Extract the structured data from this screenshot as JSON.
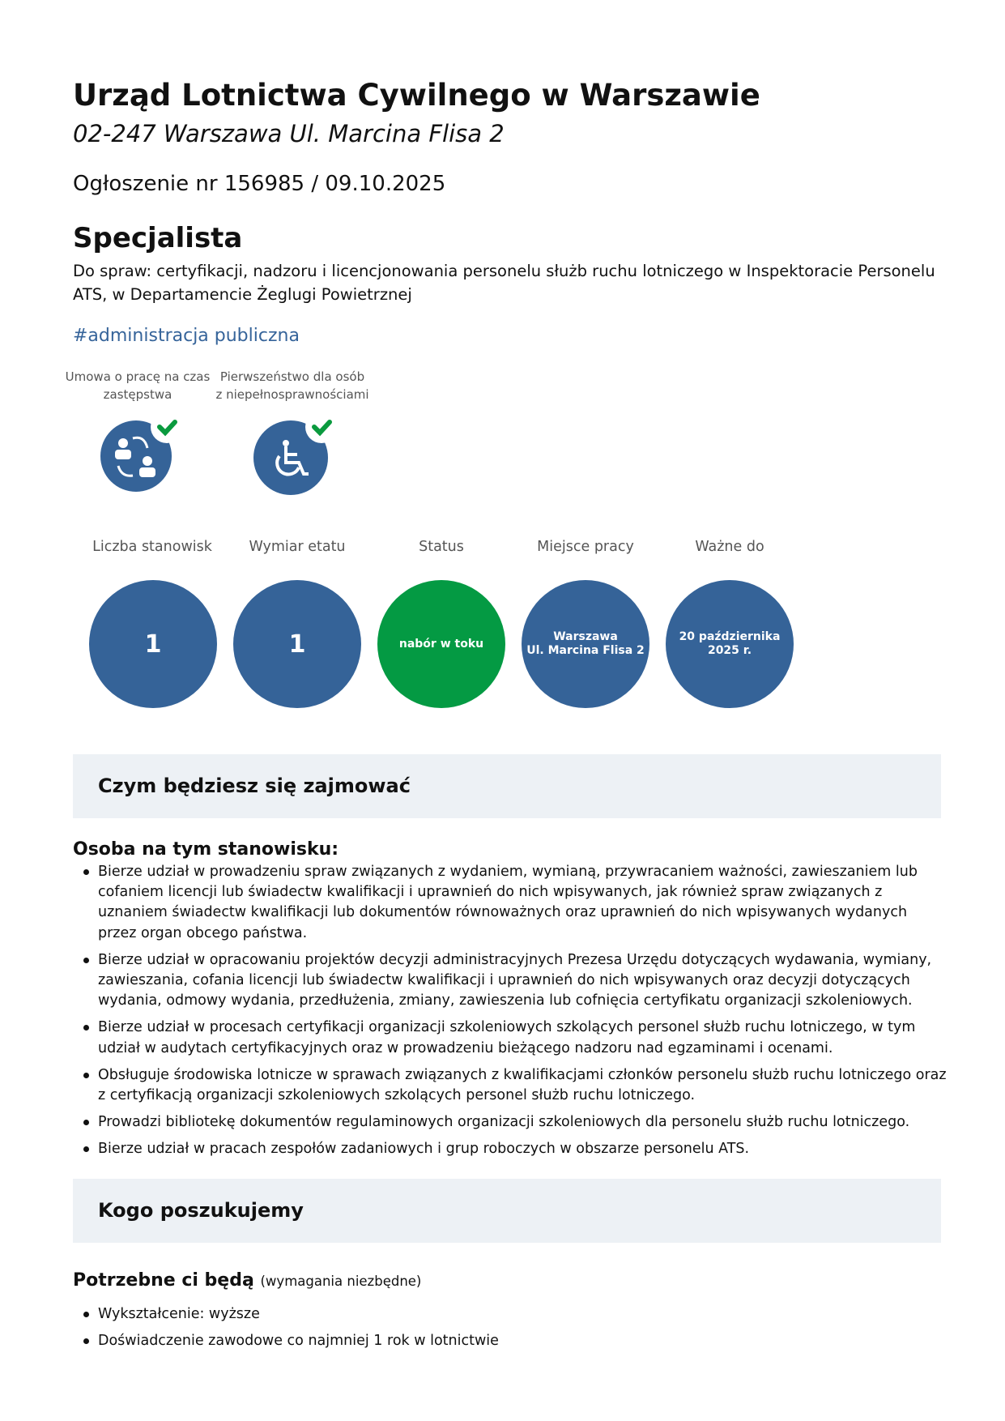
{
  "header": {
    "employer": "Urząd Lotnictwa Cywilnego w Warszawie",
    "address": "02-247 Warszawa Ul. Marcina Flisa 2",
    "notice": "Ogłoszenie nr 156985 / 09.10.2025"
  },
  "job": {
    "position": "Specjalista",
    "description": "Do spraw: certyfikacji, nadzoru i licencjonowania personelu służb ruchu lotniczego w Inspektoracie Personelu ATS, w Departamencie Żeglugi Powietrznej",
    "hashtag": "#administracja publiczna"
  },
  "features": [
    {
      "label": "Umowa o pracę na czas zastępstwa",
      "icon": "people-swap-icon",
      "checked": true
    },
    {
      "label": "Pierwszeństwo dla osób z niepełnosprawnościami",
      "icon": "wheelchair-icon",
      "checked": true
    }
  ],
  "colors": {
    "primary": "#356398",
    "status_green": "#049a43",
    "check_green": "#0a9a3e",
    "section_bg": "#edf1f5",
    "link": "#36649a"
  },
  "stats": [
    {
      "label": "Liczba stanowisk",
      "value": "1"
    },
    {
      "label": "Wymiar etatu",
      "value": "1"
    },
    {
      "label": "Status",
      "value": "nabór w toku"
    },
    {
      "label": "Miejsce pracy",
      "value": "Warszawa\nUl. Marcina Flisa 2"
    },
    {
      "label": "Ważne do",
      "value": "20 października\n2025 r."
    }
  ],
  "duties_section": {
    "title": "Czym będziesz się zajmować",
    "subtitle": "Osoba na tym stanowisku:",
    "items": [
      "Bierze udział w prowadzeniu spraw związanych z wydaniem, wymianą, przywracaniem ważności, zawieszaniem lub cofaniem licencji lub świadectw kwalifikacji i uprawnień do nich wpisywanych, jak również spraw związanych z uznaniem świadectw kwalifikacji lub dokumentów równoważnych oraz uprawnień do nich wpisywanych wydanych przez organ obcego państwa.",
      "Bierze udział w opracowaniu projektów decyzji administracyjnych Prezesa Urzędu dotyczących wydawania, wymiany, zawieszania, cofania licencji lub świadectw kwalifikacji i uprawnień do nich wpisywanych oraz decyzji dotyczących wydania, odmowy wydania, przedłużenia, zmiany, zawieszenia lub cofnięcia certyfikatu organizacji szkoleniowych.",
      "Bierze udział w procesach certyfikacji organizacji szkoleniowych szkolących personel służb ruchu lotniczego, w tym udział w audytach certyfikacyjnych oraz w prowadzeniu bieżącego nadzoru nad egzaminami i ocenami.",
      "Obsługuje środowiska lotnicze w sprawach związanych z kwalifikacjami członków personelu służb ruchu lotniczego oraz z certyfikacją organizacji szkoleniowych szkolących personel służb ruchu lotniczego.",
      "Prowadzi bibliotekę dokumentów regulaminowych organizacji szkoleniowych dla personelu służb ruchu lotniczego.",
      "Bierze udział w pracach zespołów zadaniowych i grup roboczych w obszarze personelu ATS."
    ]
  },
  "requirements_section": {
    "title": "Kogo poszukujemy",
    "subtitle": "Potrzebne ci będą",
    "subtitle_note": "(wymagania niezbędne)",
    "items": [
      "Wykształcenie: wyższe",
      "Doświadczenie zawodowe co najmniej 1 rok w lotnictwie"
    ]
  }
}
